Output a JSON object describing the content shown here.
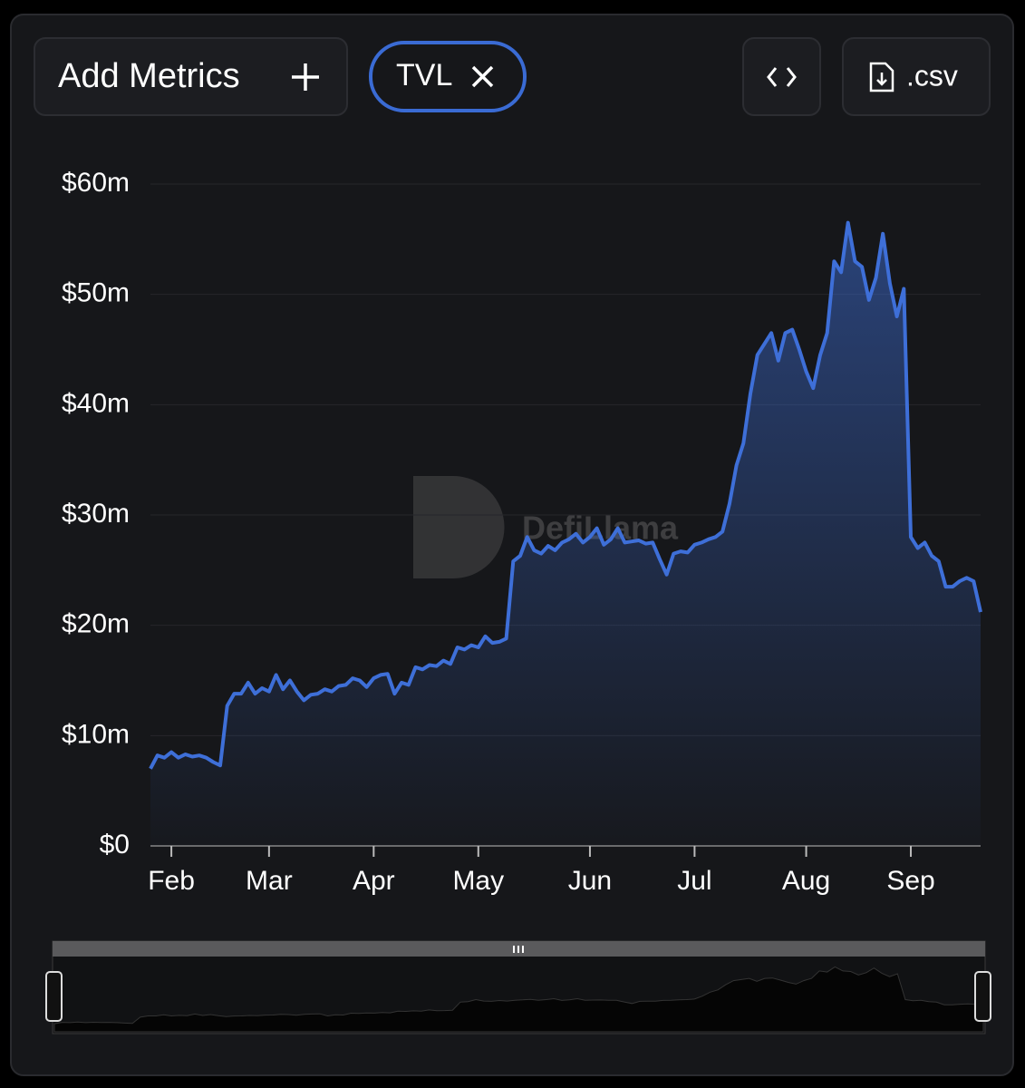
{
  "toolbar": {
    "add_metrics": "Add Metrics",
    "metric": "TVL",
    "csv": ".csv"
  },
  "watermark": "DefiLlama",
  "chart_data": {
    "type": "area",
    "color": "#3e6fd8",
    "grid": true,
    "ylim": [
      0,
      60
    ],
    "yticks": [
      {
        "value": 0,
        "label": "$0"
      },
      {
        "value": 10,
        "label": "$10m"
      },
      {
        "value": 20,
        "label": "$20m"
      },
      {
        "value": 30,
        "label": "$30m"
      },
      {
        "value": 40,
        "label": "$40m"
      },
      {
        "value": 50,
        "label": "$50m"
      },
      {
        "value": 60,
        "label": "$60m"
      }
    ],
    "categories": [
      null,
      null,
      null,
      "Feb",
      null,
      null,
      null,
      null,
      null,
      null,
      null,
      null,
      null,
      null,
      null,
      null,
      null,
      "Mar",
      null,
      null,
      null,
      null,
      null,
      null,
      null,
      null,
      null,
      null,
      null,
      null,
      null,
      null,
      "Apr",
      null,
      null,
      null,
      null,
      null,
      null,
      null,
      null,
      null,
      null,
      null,
      null,
      null,
      null,
      "May",
      null,
      null,
      null,
      null,
      null,
      null,
      null,
      null,
      null,
      null,
      null,
      null,
      null,
      null,
      null,
      "Jun",
      null,
      null,
      null,
      null,
      null,
      null,
      null,
      null,
      null,
      null,
      null,
      null,
      null,
      null,
      "Jul",
      null,
      null,
      null,
      null,
      null,
      null,
      null,
      null,
      null,
      null,
      null,
      null,
      null,
      null,
      null,
      "Aug",
      null,
      null,
      null,
      null,
      null,
      null,
      null,
      null,
      null,
      null,
      null,
      null,
      null,
      null,
      "Sep",
      null,
      null,
      null,
      null,
      null,
      null,
      null,
      null,
      null,
      null
    ],
    "values": [
      7.0,
      8.2,
      8.0,
      8.5,
      8.0,
      8.3,
      8.1,
      8.2,
      8.0,
      7.6,
      7.3,
      12.7,
      13.8,
      13.8,
      14.8,
      13.8,
      14.3,
      14.0,
      15.5,
      14.2,
      15.0,
      14.0,
      13.2,
      13.7,
      13.8,
      14.2,
      14.0,
      14.5,
      14.6,
      15.2,
      15.0,
      14.4,
      15.2,
      15.5,
      15.6,
      13.8,
      14.8,
      14.6,
      16.2,
      16.0,
      16.4,
      16.3,
      16.8,
      16.5,
      18.0,
      17.8,
      18.2,
      18.0,
      19.0,
      18.4,
      18.5,
      18.8,
      25.8,
      26.3,
      28.0,
      26.8,
      26.5,
      27.2,
      26.8,
      27.5,
      27.8,
      28.3,
      27.5,
      28.0,
      28.8,
      27.3,
      27.8,
      28.8,
      27.5,
      27.6,
      27.7,
      27.4,
      27.5,
      26.0,
      24.6,
      26.5,
      26.7,
      26.6,
      27.3,
      27.5,
      27.8,
      28.0,
      28.5,
      31.0,
      34.5,
      36.5,
      41.0,
      44.5,
      45.5,
      46.5,
      44.0,
      46.5,
      46.8,
      45.0,
      43.0,
      41.5,
      44.5,
      46.5,
      53.0,
      52.0,
      56.5,
      53.0,
      52.5,
      49.5,
      51.5,
      55.5,
      51.0,
      48.0,
      50.5,
      28.0,
      27.0,
      27.5,
      26.3,
      25.8,
      23.5,
      23.5,
      24.0,
      24.3,
      24.0,
      21.2
    ]
  }
}
